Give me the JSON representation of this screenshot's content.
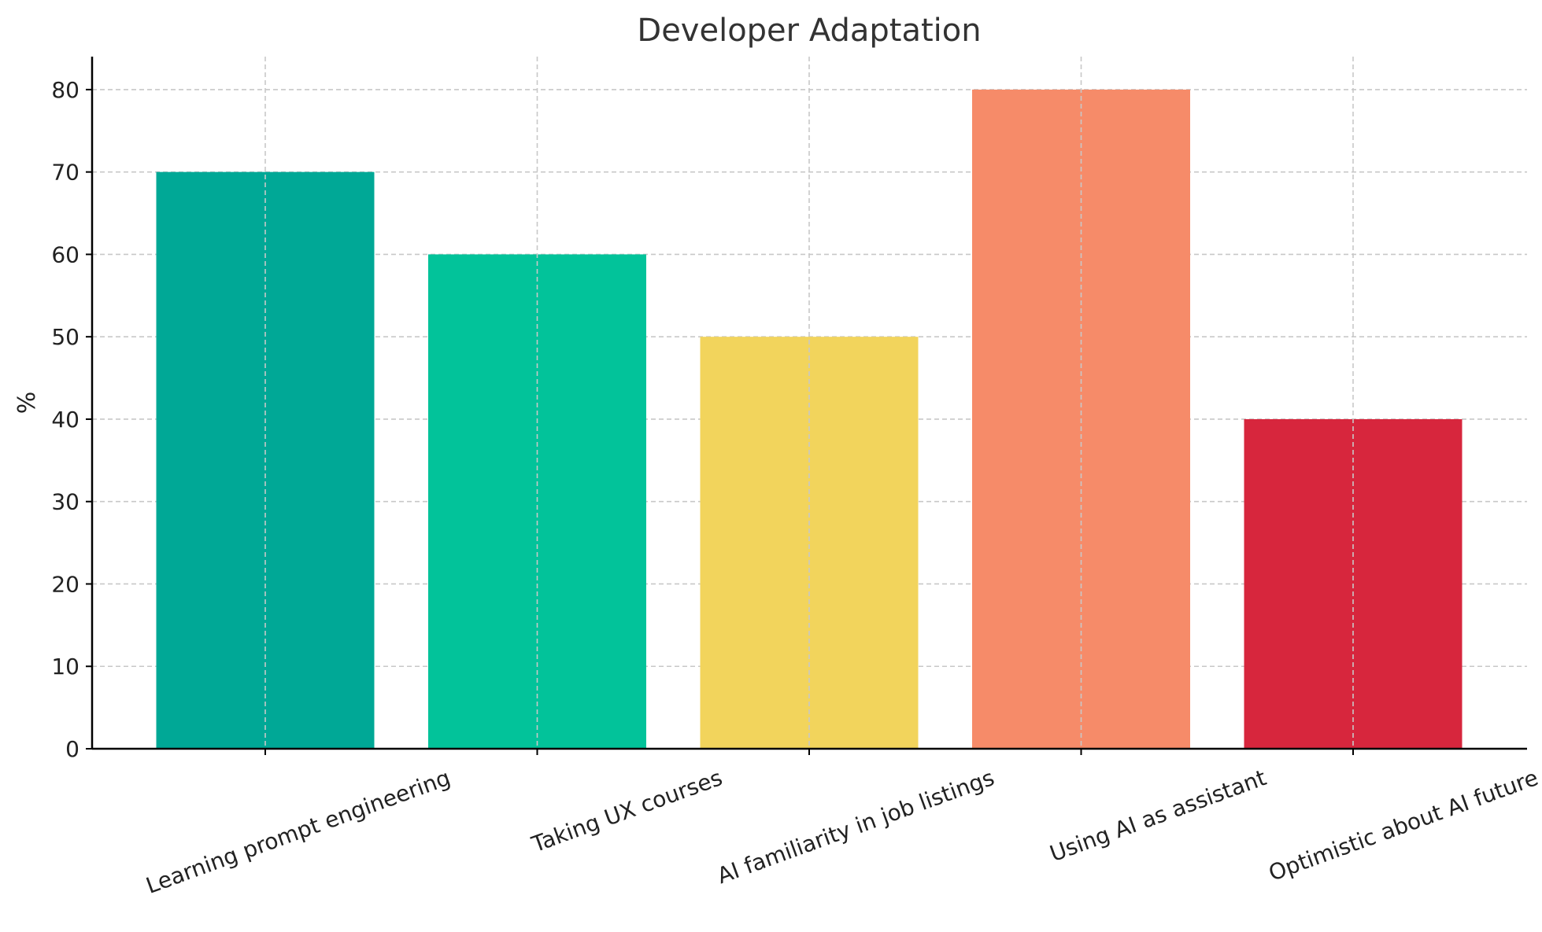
{
  "chart_data": {
    "type": "bar",
    "title": "Developer Adaptation",
    "xlabel": "",
    "ylabel": "%",
    "categories": [
      "Learning prompt engineering",
      "Taking UX courses",
      "AI familiarity in job listings",
      "Using AI as assistant",
      "Optimistic about AI future"
    ],
    "values": [
      70,
      60,
      50,
      80,
      40
    ],
    "colors": [
      "#00a896",
      "#02c39a",
      "#f2d45c",
      "#f68b69",
      "#d7263d"
    ],
    "ylim": [
      0,
      84
    ],
    "yticks": [
      0,
      10,
      20,
      30,
      40,
      50,
      60,
      70,
      80
    ],
    "grid": true
  }
}
